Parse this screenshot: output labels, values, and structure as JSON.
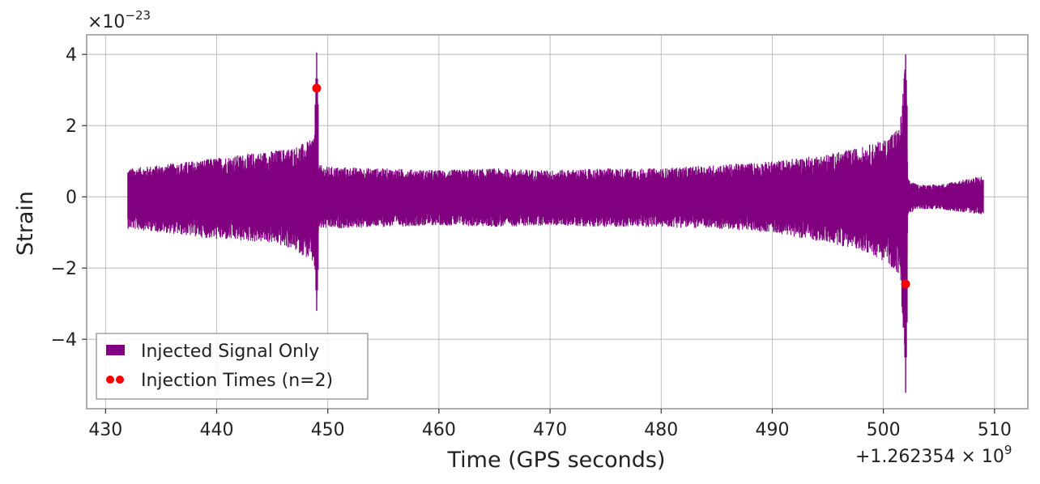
{
  "chart_data": {
    "type": "line",
    "xlabel": "Time (GPS seconds)",
    "ylabel": "Strain",
    "x_offset_label": "+1.262354 × 10",
    "x_offset_exponent": "9",
    "y_multiplier_label": "×10",
    "y_multiplier_exponent": "−23",
    "xlim": [
      428.3,
      513.0
    ],
    "ylim": [
      -5.95,
      4.55
    ],
    "x_ticks": [
      430,
      440,
      450,
      460,
      470,
      480,
      490,
      500,
      510
    ],
    "x_tick_labels": [
      "430",
      "440",
      "450",
      "460",
      "470",
      "480",
      "490",
      "500",
      "510"
    ],
    "y_ticks": [
      -4,
      -2,
      0,
      2,
      4
    ],
    "y_tick_labels": [
      "−4",
      "−2",
      "0",
      "2",
      "4"
    ],
    "grid": true,
    "legend_position": "lower-left",
    "series": [
      {
        "name": "Injected Signal Only",
        "kind": "strain",
        "color": "#800080",
        "x_range": [
          432.0,
          509.0
        ],
        "envelope": {
          "x": [
            432.0,
            435.0,
            440.0,
            445.0,
            447.0,
            448.5,
            448.9,
            449.0,
            449.2,
            450.0,
            455.0,
            460.0,
            465.0,
            470.0,
            475.0,
            480.0,
            485.0,
            490.0,
            495.0,
            498.0,
            500.0,
            501.5,
            502.0,
            502.2,
            503.0,
            505.0,
            509.0
          ],
          "upper": [
            0.8,
            0.9,
            1.1,
            1.3,
            1.4,
            1.6,
            2.0,
            4.05,
            0.9,
            0.85,
            0.8,
            0.75,
            0.8,
            0.75,
            0.8,
            0.8,
            0.9,
            1.0,
            1.2,
            1.4,
            1.6,
            2.0,
            4.0,
            0.5,
            0.35,
            0.35,
            0.6
          ],
          "lower": [
            -0.9,
            -1.0,
            -1.2,
            -1.3,
            -1.5,
            -1.8,
            -2.1,
            -3.2,
            -0.9,
            -0.9,
            -0.85,
            -0.8,
            -0.85,
            -0.8,
            -0.85,
            -0.85,
            -0.9,
            -1.0,
            -1.3,
            -1.5,
            -1.8,
            -2.2,
            -5.5,
            -0.5,
            -0.35,
            -0.35,
            -0.5
          ]
        }
      },
      {
        "name": "Injection Times (n=2)",
        "kind": "points",
        "color": "#ff0000",
        "points": [
          {
            "x": 449.0,
            "y": 3.05
          },
          {
            "x": 502.0,
            "y": -2.45
          }
        ]
      }
    ]
  }
}
